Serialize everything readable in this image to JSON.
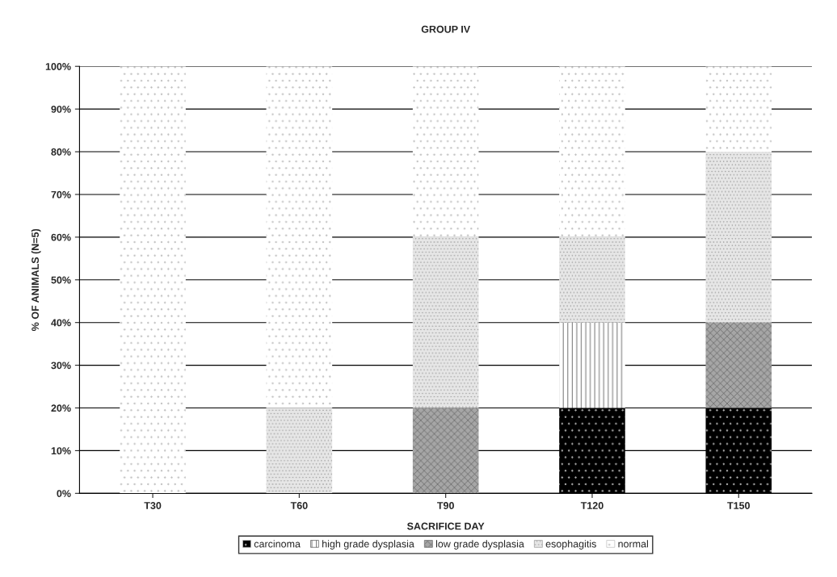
{
  "chart_data": {
    "type": "bar",
    "stacked": true,
    "title": "GROUP IV",
    "xlabel": "SACRIFICE DAY",
    "ylabel": "% OF ANIMALS (N=5)",
    "categories": [
      "T30",
      "T60",
      "T90",
      "T120",
      "T150"
    ],
    "series": [
      {
        "name": "carcinoma",
        "color": "#000000",
        "values": [
          0,
          0,
          0,
          20,
          20
        ]
      },
      {
        "name": "high grade dysplasia",
        "color": "#ffffff",
        "values": [
          0,
          0,
          0,
          20,
          0
        ]
      },
      {
        "name": "low grade dysplasia",
        "color": "#a6a6a6",
        "values": [
          0,
          0,
          20,
          0,
          20
        ]
      },
      {
        "name": "esophagitis",
        "color": "#e6e6e6",
        "values": [
          0,
          20,
          40,
          20,
          40
        ]
      },
      {
        "name": "normal",
        "color": "#ffffff",
        "values": [
          100,
          80,
          40,
          40,
          20
        ]
      }
    ],
    "ylim": [
      0,
      100
    ],
    "yticks": [
      {
        "value": 0,
        "label": "0%"
      },
      {
        "value": 10,
        "label": "10%"
      },
      {
        "value": 20,
        "label": "20%"
      },
      {
        "value": 30,
        "label": "30%"
      },
      {
        "value": 40,
        "label": "40%"
      },
      {
        "value": 50,
        "label": "50%"
      },
      {
        "value": 60,
        "label": "60%"
      },
      {
        "value": 70,
        "label": "70%"
      },
      {
        "value": 80,
        "label": "80%"
      },
      {
        "value": 90,
        "label": "90%"
      },
      {
        "value": 100,
        "label": "100%"
      }
    ],
    "grid": "y",
    "legend": "bottom"
  }
}
